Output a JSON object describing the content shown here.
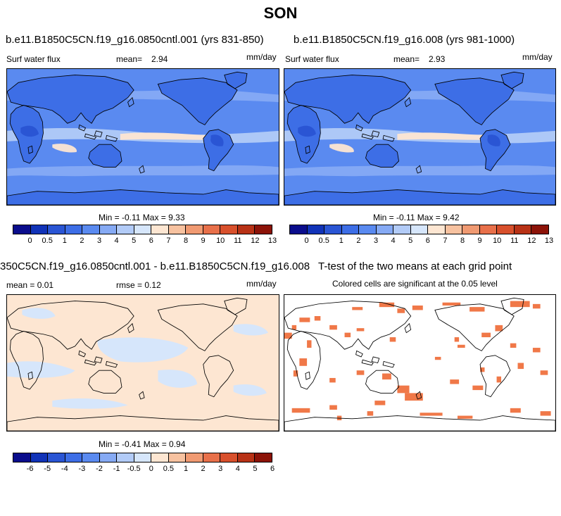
{
  "title": "SON",
  "panels": {
    "a": {
      "title": "b.e11.B1850C5CN.f19_g16.0850cntl.001 (yrs 831-850)",
      "var_label": "Surf water flux",
      "mean_label": "mean=",
      "mean_value": "2.94",
      "units": "mm/day",
      "minmax": "Min = -0.11 Max = 9.33"
    },
    "b": {
      "title": "b.e11.B1850C5CN.f19_g16.008 (yrs 981-1000)",
      "var_label": "Surf water flux",
      "mean_label": "mean=",
      "mean_value": "2.93",
      "units": "mm/day",
      "minmax": "Min = -0.11 Max = 9.42"
    },
    "c": {
      "title": "350C5CN.f19_g16.0850cntl.001 - b.e11.B1850C5CN.f19_g16.008",
      "mean_text": "mean =  0.01",
      "rmse_text": "rmse =  0.12",
      "units": "mm/day",
      "minmax": "Min = -0.41 Max =  0.94"
    },
    "d": {
      "title": "T-test of the two means at each grid point",
      "subtitle": "Colored cells are significant at the 0.05 level"
    }
  },
  "colorbars": {
    "abs": {
      "colors": [
        "#0a0d8c",
        "#1133b8",
        "#2a55d4",
        "#3d6ee6",
        "#5a8af0",
        "#86aaf4",
        "#b2cbf7",
        "#d6e6fb",
        "#fde6d2",
        "#f7c2a0",
        "#f09a72",
        "#e8704a",
        "#d8502c",
        "#b83216",
        "#8c1308"
      ],
      "labels": [
        "0",
        "0.5",
        "1",
        "2",
        "3",
        "4",
        "5",
        "6",
        "7",
        "8",
        "9",
        "10",
        "11",
        "12",
        "13"
      ]
    },
    "diff": {
      "colors": [
        "#0a0d8c",
        "#1133b8",
        "#2a55d4",
        "#3d6ee6",
        "#5a8af0",
        "#86aaf4",
        "#b2cbf7",
        "#d6e6fb",
        "#fde6d2",
        "#f7c2a0",
        "#f09a72",
        "#e8704a",
        "#d8502c",
        "#b83216",
        "#8c1308"
      ],
      "labels": [
        "-6",
        "-5",
        "-4",
        "-3",
        "-2",
        "-1",
        "-0.5",
        "0",
        "0.5",
        "1",
        "2",
        "3",
        "4",
        "5",
        "6"
      ]
    }
  },
  "colors": {
    "ocean_base": "#5a8af0",
    "land_base": "#3d6ee6",
    "wet_band": "#b2cbf7",
    "wettest": "#fde6d2",
    "diff_pos": "#fde6d2",
    "diff_neg": "#d6e6fb",
    "significant": "#f07848"
  }
}
